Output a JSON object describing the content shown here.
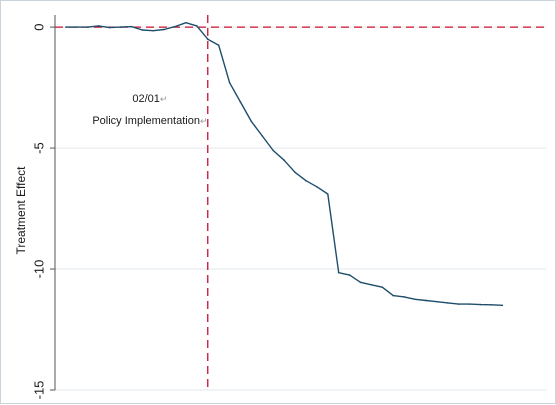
{
  "chart_data": {
    "type": "line",
    "title": "",
    "xlabel": "",
    "ylabel": "Treatment Effect",
    "ylim": [
      -15,
      0.5
    ],
    "yticks": [
      0,
      -5,
      -10,
      -15
    ],
    "grid": true,
    "colors": {
      "series": "#1f4e6b",
      "reference_lines": "#c8102e",
      "grid": "#e3e8ee",
      "axis": "#555555"
    },
    "reference_lines": {
      "horizontal_y": 0,
      "vertical_x": 13
    },
    "annotations": [
      {
        "label": "02/01",
        "mark": "↵",
        "x": 7.7,
        "y": -3.1
      },
      {
        "label": "Policy Implementation",
        "mark": "↵",
        "x": 7.7,
        "y": -4.0
      }
    ],
    "xlim": [
      -1,
      44
    ],
    "series": [
      {
        "x": [
          0,
          1,
          2,
          3,
          4,
          5,
          6,
          7,
          8,
          9,
          10,
          11,
          12,
          13,
          14,
          15,
          16,
          17,
          18,
          19,
          20,
          21,
          22,
          23,
          24,
          25,
          26,
          27,
          28,
          29,
          30,
          31,
          32,
          33,
          34,
          35,
          36,
          37,
          38,
          39,
          40
        ],
        "values": [
          0,
          0,
          0,
          0.05,
          -0.02,
          0,
          0.02,
          -0.12,
          -0.15,
          -0.1,
          0.02,
          0.18,
          0.05,
          -0.5,
          -0.75,
          -2.3,
          -3.1,
          -3.9,
          -4.5,
          -5.1,
          -5.5,
          -6.0,
          -6.35,
          -6.6,
          -6.9,
          -10.15,
          -10.25,
          -10.55,
          -10.65,
          -10.75,
          -11.1,
          -11.15,
          -11.25,
          -11.3,
          -11.35,
          -11.4,
          -11.45,
          -11.45,
          -11.47,
          -11.48,
          -11.5
        ]
      }
    ]
  }
}
